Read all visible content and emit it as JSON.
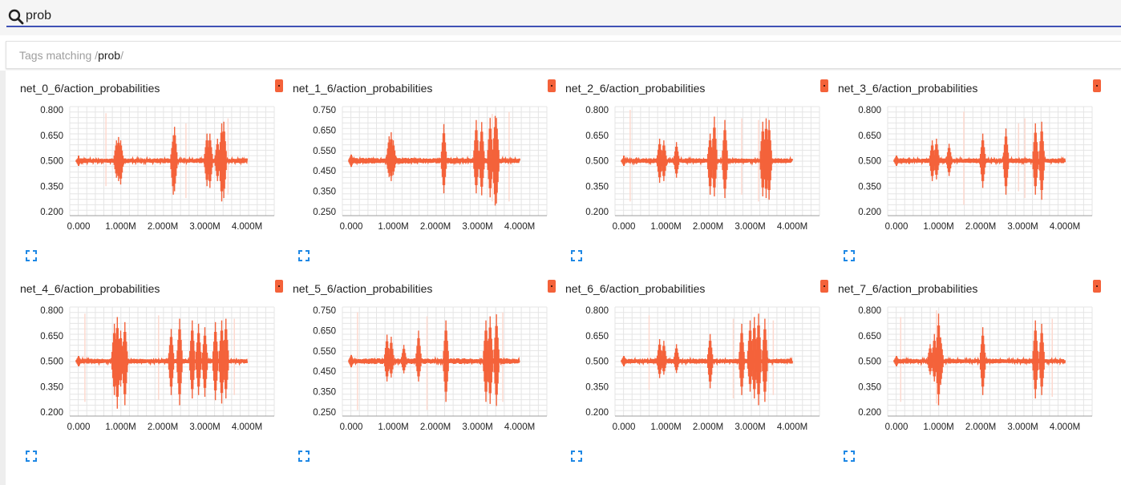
{
  "search": {
    "value": "prob",
    "placeholder": ""
  },
  "tags": {
    "prefix": "Tags matching ",
    "slash_open": "/",
    "regex": "prob",
    "slash_close": "/"
  },
  "colors": {
    "accent": "#3f51b5",
    "series": "#f4623a",
    "series_faint": "#fdd9cf",
    "grid": "#e5e5e5"
  },
  "icons": {
    "search": "search-icon",
    "expand": "expand-icon",
    "log_scale": "log-scale-badge"
  },
  "charts": [
    {
      "title": "net_0_6/action_probabilities",
      "chart_data": {
        "type": "line",
        "y_ticks": [
          "0.800",
          "0.650",
          "0.500",
          "0.350",
          "0.200"
        ],
        "ylim": [
          0.2,
          0.8
        ],
        "x_ticks": [
          "0.000",
          "1.000M",
          "2.000M",
          "3.000M",
          "4.000M"
        ],
        "xlim": [
          0,
          4000000
        ],
        "baseline": 0.5,
        "spikes": [
          [
            0.0,
            0.47,
            0.52
          ],
          [
            0.9,
            0.4,
            0.62
          ],
          [
            0.95,
            0.38,
            0.64
          ],
          [
            1.0,
            0.36,
            0.62
          ],
          [
            2.25,
            0.3,
            0.65
          ],
          [
            2.28,
            0.32,
            0.7
          ],
          [
            3.05,
            0.35,
            0.66
          ],
          [
            3.12,
            0.34,
            0.66
          ],
          [
            3.3,
            0.38,
            0.63
          ],
          [
            3.4,
            0.26,
            0.72
          ],
          [
            3.45,
            0.28,
            0.73
          ]
        ],
        "faint": [
          [
            0.65,
            0.35,
            0.78
          ],
          [
            2.55,
            0.28,
            0.72
          ],
          [
            3.55,
            0.3,
            0.75
          ]
        ]
      }
    },
    {
      "title": "net_1_6/action_probabilities",
      "chart_data": {
        "type": "line",
        "y_ticks": [
          "0.750",
          "0.650",
          "0.550",
          "0.450",
          "0.350",
          "0.250"
        ],
        "ylim": [
          0.25,
          0.75
        ],
        "x_ticks": [
          "0.000",
          "1.000M",
          "2.000M",
          "3.000M",
          "4.000M"
        ],
        "xlim": [
          0,
          4000000
        ],
        "baseline": 0.5,
        "spikes": [
          [
            0.0,
            0.47,
            0.53
          ],
          [
            0.9,
            0.42,
            0.62
          ],
          [
            0.95,
            0.4,
            0.64
          ],
          [
            1.0,
            0.43,
            0.6
          ],
          [
            2.2,
            0.34,
            0.68
          ],
          [
            2.97,
            0.34,
            0.7
          ],
          [
            3.1,
            0.33,
            0.69
          ],
          [
            3.3,
            0.32,
            0.71
          ],
          [
            3.42,
            0.28,
            0.72
          ],
          [
            3.45,
            0.29,
            0.71
          ]
        ],
        "faint": [
          [
            3.75,
            0.3,
            0.74
          ],
          [
            3.35,
            0.3,
            0.73
          ]
        ]
      }
    },
    {
      "title": "net_2_6/action_probabilities",
      "chart_data": {
        "type": "line",
        "y_ticks": [
          "0.800",
          "0.650",
          "0.500",
          "0.350",
          "0.200"
        ],
        "ylim": [
          0.2,
          0.8
        ],
        "x_ticks": [
          "0.000",
          "1.000M",
          "2.000M",
          "3.000M",
          "4.000M"
        ],
        "xlim": [
          0,
          4000000
        ],
        "baseline": 0.5,
        "spikes": [
          [
            0.0,
            0.47,
            0.52
          ],
          [
            0.3,
            0.48,
            0.52
          ],
          [
            0.85,
            0.37,
            0.63
          ],
          [
            0.95,
            0.38,
            0.62
          ],
          [
            1.25,
            0.4,
            0.61
          ],
          [
            2.05,
            0.3,
            0.66
          ],
          [
            2.15,
            0.29,
            0.76
          ],
          [
            2.4,
            0.28,
            0.74
          ],
          [
            3.3,
            0.29,
            0.73
          ],
          [
            3.38,
            0.28,
            0.75
          ],
          [
            3.45,
            0.27,
            0.74
          ]
        ],
        "faint": [
          [
            0.15,
            0.26,
            0.8
          ],
          [
            2.8,
            0.3,
            0.75
          ],
          [
            3.2,
            0.26,
            0.74
          ]
        ]
      }
    },
    {
      "title": "net_3_6/action_probabilities",
      "chart_data": {
        "type": "line",
        "y_ticks": [
          "0.800",
          "0.650",
          "0.500",
          "0.350",
          "0.200"
        ],
        "ylim": [
          0.2,
          0.8
        ],
        "x_ticks": [
          "0.000",
          "1.000M",
          "2.000M",
          "3.000M",
          "4.000M"
        ],
        "xlim": [
          0,
          4000000
        ],
        "baseline": 0.5,
        "spikes": [
          [
            0.0,
            0.47,
            0.53
          ],
          [
            0.3,
            0.48,
            0.52
          ],
          [
            0.85,
            0.38,
            0.62
          ],
          [
            0.95,
            0.39,
            0.63
          ],
          [
            1.25,
            0.41,
            0.6
          ],
          [
            2.05,
            0.34,
            0.66
          ],
          [
            2.6,
            0.3,
            0.69
          ],
          [
            3.3,
            0.3,
            0.72
          ],
          [
            3.45,
            0.27,
            0.73
          ]
        ],
        "faint": [
          [
            1.6,
            0.24,
            0.79
          ],
          [
            3.05,
            0.28,
            0.75
          ],
          [
            2.9,
            0.32,
            0.72
          ]
        ]
      }
    },
    {
      "title": "net_4_6/action_probabilities",
      "chart_data": {
        "type": "line",
        "y_ticks": [
          "0.800",
          "0.650",
          "0.500",
          "0.350",
          "0.200"
        ],
        "ylim": [
          0.2,
          0.8
        ],
        "x_ticks": [
          "0.000",
          "1.000M",
          "2.000M",
          "3.000M",
          "4.000M"
        ],
        "xlim": [
          0,
          4000000
        ],
        "baseline": 0.5,
        "spikes": [
          [
            0.0,
            0.47,
            0.53
          ],
          [
            0.85,
            0.3,
            0.72
          ],
          [
            0.92,
            0.22,
            0.76
          ],
          [
            1.0,
            0.35,
            0.68
          ],
          [
            1.1,
            0.24,
            0.73
          ],
          [
            2.2,
            0.3,
            0.69
          ],
          [
            2.4,
            0.24,
            0.75
          ],
          [
            2.7,
            0.28,
            0.74
          ],
          [
            2.85,
            0.3,
            0.72
          ],
          [
            3.0,
            0.29,
            0.7
          ],
          [
            3.25,
            0.27,
            0.73
          ],
          [
            3.4,
            0.25,
            0.74
          ],
          [
            3.5,
            0.28,
            0.75
          ]
        ],
        "faint": [
          [
            0.15,
            0.26,
            0.78
          ],
          [
            1.9,
            0.27,
            0.77
          ],
          [
            3.7,
            0.3,
            0.75
          ]
        ]
      }
    },
    {
      "title": "net_5_6/action_probabilities",
      "chart_data": {
        "type": "line",
        "y_ticks": [
          "0.750",
          "0.650",
          "0.550",
          "0.450",
          "0.350",
          "0.250"
        ],
        "ylim": [
          0.25,
          0.75
        ],
        "x_ticks": [
          "0.000",
          "1.000M",
          "2.000M",
          "3.000M",
          "4.000M"
        ],
        "xlim": [
          0,
          4000000
        ],
        "baseline": 0.5,
        "spikes": [
          [
            0.0,
            0.47,
            0.53
          ],
          [
            0.85,
            0.4,
            0.63
          ],
          [
            0.95,
            0.42,
            0.62
          ],
          [
            1.25,
            0.44,
            0.58
          ],
          [
            1.6,
            0.4,
            0.65
          ],
          [
            2.25,
            0.3,
            0.7
          ],
          [
            3.2,
            0.3,
            0.7
          ],
          [
            3.3,
            0.29,
            0.72
          ],
          [
            3.45,
            0.28,
            0.73
          ]
        ],
        "faint": [
          [
            0.15,
            0.26,
            0.74
          ],
          [
            1.8,
            0.26,
            0.72
          ],
          [
            3.6,
            0.3,
            0.74
          ]
        ]
      }
    },
    {
      "title": "net_6_6/action_probabilities",
      "chart_data": {
        "type": "line",
        "y_ticks": [
          "0.800",
          "0.650",
          "0.500",
          "0.350",
          "0.200"
        ],
        "ylim": [
          0.2,
          0.8
        ],
        "x_ticks": [
          "0.000",
          "1.000M",
          "2.000M",
          "3.000M",
          "4.000M"
        ],
        "xlim": [
          0,
          4000000
        ],
        "baseline": 0.5,
        "spikes": [
          [
            0.0,
            0.47,
            0.53
          ],
          [
            0.85,
            0.4,
            0.63
          ],
          [
            0.95,
            0.42,
            0.62
          ],
          [
            1.25,
            0.43,
            0.6
          ],
          [
            2.05,
            0.34,
            0.66
          ],
          [
            2.8,
            0.3,
            0.72
          ],
          [
            3.0,
            0.32,
            0.74
          ],
          [
            3.1,
            0.28,
            0.76
          ],
          [
            3.2,
            0.24,
            0.78
          ],
          [
            3.35,
            0.26,
            0.75
          ]
        ],
        "faint": [
          [
            0.6,
            0.33,
            0.77
          ],
          [
            2.6,
            0.28,
            0.75
          ],
          [
            3.55,
            0.3,
            0.74
          ]
        ]
      }
    },
    {
      "title": "net_7_6/action_probabilities",
      "chart_data": {
        "type": "line",
        "y_ticks": [
          "0.800",
          "0.650",
          "0.500",
          "0.350",
          "0.200"
        ],
        "ylim": [
          0.2,
          0.8
        ],
        "x_ticks": [
          "0.000",
          "1.000M",
          "2.000M",
          "3.000M",
          "4.000M"
        ],
        "xlim": [
          0,
          4000000
        ],
        "baseline": 0.5,
        "spikes": [
          [
            0.0,
            0.47,
            0.53
          ],
          [
            0.8,
            0.42,
            0.6
          ],
          [
            0.9,
            0.38,
            0.66
          ],
          [
            1.0,
            0.24,
            0.78
          ],
          [
            1.05,
            0.36,
            0.64
          ],
          [
            2.05,
            0.3,
            0.7
          ],
          [
            3.3,
            0.28,
            0.74
          ],
          [
            3.45,
            0.3,
            0.72
          ]
        ],
        "faint": [
          [
            0.1,
            0.26,
            0.76
          ],
          [
            0.95,
            0.25,
            0.8
          ],
          [
            3.7,
            0.29,
            0.75
          ]
        ]
      }
    }
  ]
}
